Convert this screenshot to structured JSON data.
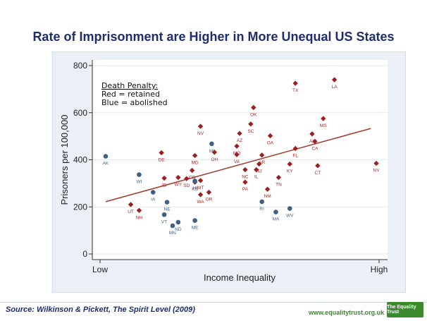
{
  "header": {
    "title": "Rate of Imprisonment are Higher in More Unequal US States"
  },
  "footer": {
    "source": "Source: Wilkinson & Pickett, The Spirit Level (2009)",
    "website": "www.equalitytrust.org.uk",
    "logo_text": "The Equality Trust"
  },
  "colors": {
    "retained": "#9b1f1f",
    "abolished": "#3f5f86",
    "fit_line": "#a33a2a",
    "title": "#1f2d6b",
    "panel_bg": "#eaf0f5"
  },
  "chart_data": {
    "type": "scatter",
    "title": "Rate of Imprisonment are Higher in More Unequal US States",
    "xlabel": "Income Inequality",
    "ylabel": "Prisoners per 100,000",
    "xlim": [
      0,
      100
    ],
    "ylim": [
      0,
      800
    ],
    "x_tick_labels": [
      {
        "value": 0,
        "label": "Low"
      },
      {
        "value": 100,
        "label": "High"
      }
    ],
    "y_ticks": [
      0,
      200,
      400,
      600,
      800
    ],
    "grid": true,
    "legend": {
      "placement": "top-left",
      "title": "Death Penalty:",
      "entries": [
        "Red = retained",
        "Blue = abolished"
      ]
    },
    "fit_line": {
      "x": [
        2,
        97
      ],
      "y": [
        222,
        533
      ]
    },
    "series": [
      {
        "name": "retained",
        "points": [
          {
            "label": "TX",
            "x": 70,
            "y": 725
          },
          {
            "label": "LA",
            "x": 84,
            "y": 740
          },
          {
            "label": "OK",
            "x": 55,
            "y": 622
          },
          {
            "label": "MS",
            "x": 80,
            "y": 575
          },
          {
            "label": "NV",
            "x": 36,
            "y": 542
          },
          {
            "label": "SC",
            "x": 54,
            "y": 552
          },
          {
            "label": "AZ",
            "x": 50,
            "y": 512
          },
          {
            "label": "AL",
            "x": 76,
            "y": 510
          },
          {
            "label": "GA",
            "x": 61,
            "y": 502
          },
          {
            "label": "CA",
            "x": 77,
            "y": 478
          },
          {
            "label": "MO",
            "x": 49,
            "y": 458
          },
          {
            "label": "FL",
            "x": 70,
            "y": 448
          },
          {
            "label": "DE",
            "x": 22,
            "y": 430
          },
          {
            "label": "OH",
            "x": 41,
            "y": 432
          },
          {
            "label": "VA",
            "x": 49,
            "y": 422
          },
          {
            "label": "AR",
            "x": 58,
            "y": 420
          },
          {
            "label": "MD",
            "x": 34,
            "y": 418
          },
          {
            "label": "NJ",
            "x": 57,
            "y": 382
          },
          {
            "label": "KY",
            "x": 68,
            "y": 382
          },
          {
            "label": "CT",
            "x": 78,
            "y": 375
          },
          {
            "label": "NY",
            "x": 99,
            "y": 385
          },
          {
            "label": "CO",
            "x": 33,
            "y": 355
          },
          {
            "label": "NC",
            "x": 52,
            "y": 358
          },
          {
            "label": "IL",
            "x": 56,
            "y": 358
          },
          {
            "label": "ID",
            "x": 23,
            "y": 322
          },
          {
            "label": "WY",
            "x": 28,
            "y": 325
          },
          {
            "label": "SD",
            "x": 31,
            "y": 320
          },
          {
            "label": "TN",
            "x": 64,
            "y": 325
          },
          {
            "label": "MT",
            "x": 36,
            "y": 312
          },
          {
            "label": "KS",
            "x": 34,
            "y": 305
          },
          {
            "label": "PA",
            "x": 52,
            "y": 305
          },
          {
            "label": "NM",
            "x": 60,
            "y": 275
          },
          {
            "label": "WA",
            "x": 36,
            "y": 252
          },
          {
            "label": "OR",
            "x": 39,
            "y": 262
          },
          {
            "label": "UT",
            "x": 11,
            "y": 210
          },
          {
            "label": "NH",
            "x": 14,
            "y": 185
          }
        ]
      },
      {
        "name": "abolished",
        "points": [
          {
            "label": "AK",
            "x": 2,
            "y": 415
          },
          {
            "label": "MI",
            "x": 40,
            "y": 468
          },
          {
            "label": "WI",
            "x": 14,
            "y": 337
          },
          {
            "label": "HI",
            "x": 34,
            "y": 310
          },
          {
            "label": "IA",
            "x": 19,
            "y": 262
          },
          {
            "label": "NE",
            "x": 24,
            "y": 220
          },
          {
            "label": "RI",
            "x": 58,
            "y": 222
          },
          {
            "label": "MA",
            "x": 63,
            "y": 178
          },
          {
            "label": "WV",
            "x": 68,
            "y": 193
          },
          {
            "label": "VT",
            "x": 23,
            "y": 167
          },
          {
            "label": "ME",
            "x": 34,
            "y": 142
          },
          {
            "label": "ND",
            "x": 28,
            "y": 135
          },
          {
            "label": "MN",
            "x": 26,
            "y": 120
          }
        ]
      }
    ]
  }
}
